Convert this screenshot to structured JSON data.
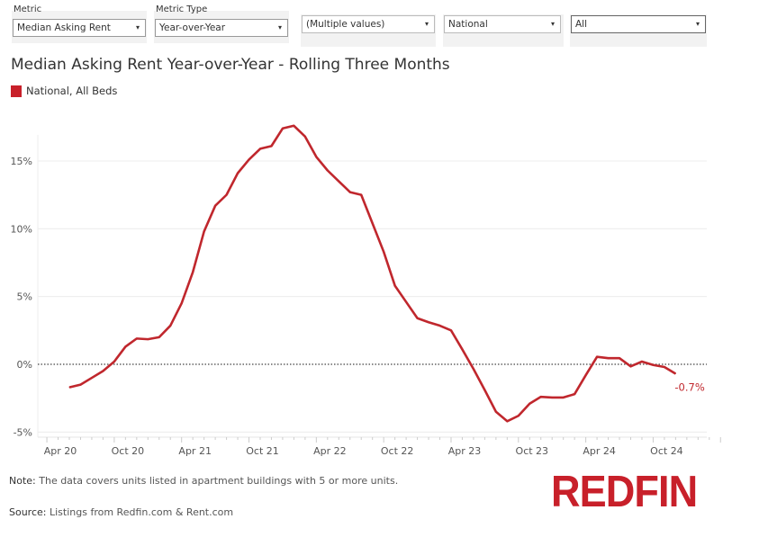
{
  "filters": [
    {
      "label": "Metric",
      "value": "Median Asking Rent"
    },
    {
      "label": "Metric Type",
      "value": "Year-over-Year"
    },
    {
      "label": "",
      "value": "(Multiple values)"
    },
    {
      "label": "",
      "value": "National"
    },
    {
      "label": "",
      "value": "All"
    }
  ],
  "dropdown_icon": "▾",
  "footer": {
    "note_label": "Note:",
    "note_text": " The data covers units listed in apartment buildings with 5 or more units.",
    "source_label": "Source:",
    "source_text": " Listings from Redfin.com & Rent.com",
    "logo": "REDFIN"
  },
  "colors": {
    "series": "#c0272d",
    "logo": "#c8202a"
  },
  "chart_data": {
    "type": "line",
    "title": "Median Asking Rent Year-over-Year - Rolling Three Months",
    "legend_position": "top-left",
    "series": [
      {
        "name": "National, All Beds",
        "start": "Jun 2020",
        "end": "Dec 2024",
        "frequency": "monthly",
        "values": [
          -1.7,
          -1.5,
          -1.0,
          -0.5,
          0.2,
          1.3,
          1.9,
          1.85,
          2.0,
          2.85,
          4.5,
          6.8,
          9.8,
          11.7,
          12.5,
          14.1,
          15.1,
          15.9,
          16.1,
          17.4,
          17.6,
          16.8,
          15.3,
          14.3,
          13.5,
          12.7,
          12.5,
          10.4,
          8.3,
          5.8,
          4.6,
          3.4,
          3.1,
          2.85,
          2.5,
          1.1,
          -0.35,
          -1.9,
          -3.5,
          -4.2,
          -3.8,
          -2.9,
          -2.4,
          -2.45,
          -2.45,
          -2.2,
          -0.8,
          0.55,
          0.45,
          0.45,
          -0.15,
          0.2,
          -0.05,
          -0.2,
          -0.7
        ]
      }
    ],
    "end_label": "-0.7%",
    "x_ticks": [
      "Apr 20",
      "Oct 20",
      "Apr 21",
      "Oct 21",
      "Apr 22",
      "Oct 22",
      "Apr 23",
      "Oct 23",
      "Apr 24",
      "Oct 24"
    ],
    "y_ticks": [
      "-5%",
      "0%",
      "5%",
      "10%",
      "15%"
    ],
    "y_tick_values": [
      -5,
      0,
      5,
      10,
      15
    ],
    "ylim": [
      -5.4,
      19
    ],
    "grid": true,
    "zero_line": "dotted"
  }
}
